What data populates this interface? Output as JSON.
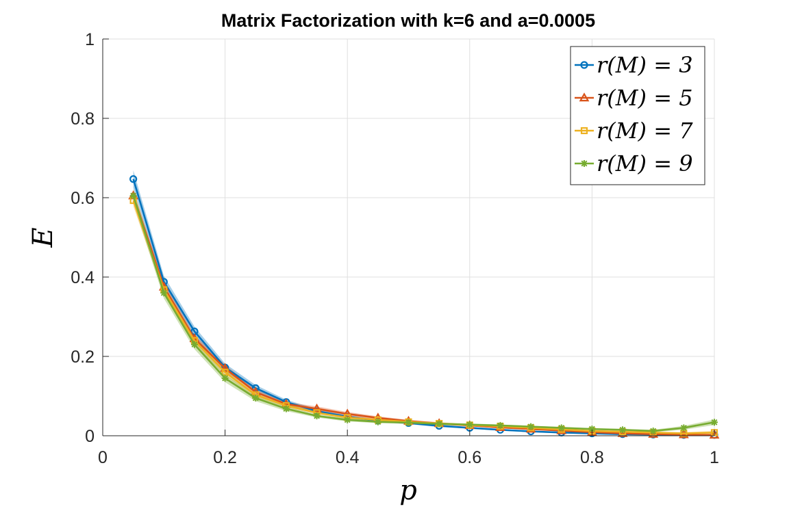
{
  "chart_data": {
    "type": "line",
    "title": "Matrix Factorization with k=6 and a=0.0005",
    "xlabel": "p",
    "ylabel": "E",
    "xlim": [
      0,
      1
    ],
    "ylim": [
      0,
      1
    ],
    "xticks": [
      "0",
      "0.2",
      "0.4",
      "0.6",
      "0.8",
      "1"
    ],
    "yticks": [
      "0",
      "0.2",
      "0.4",
      "0.6",
      "0.8",
      "1"
    ],
    "grid": true,
    "legend_position": "top-right",
    "x": [
      0.05,
      0.1,
      0.15,
      0.2,
      0.25,
      0.3,
      0.35,
      0.4,
      0.45,
      0.5,
      0.55,
      0.6,
      0.65,
      0.7,
      0.75,
      0.8,
      0.85,
      0.9,
      0.95,
      1.0
    ],
    "series": [
      {
        "name": "r(M) = 3",
        "color": "#0072BD",
        "marker": "circle",
        "values": [
          0.647,
          0.388,
          0.263,
          0.172,
          0.12,
          0.085,
          0.062,
          0.048,
          0.038,
          0.032,
          0.025,
          0.02,
          0.015,
          0.011,
          0.008,
          0.006,
          0.004,
          0.003,
          0.002,
          0.002
        ],
        "band": [
          0.022,
          0.015,
          0.012,
          0.01,
          0.008,
          0.006,
          0.005,
          0.004,
          0.003,
          0.003,
          0.003,
          0.002,
          0.002,
          0.002,
          0.002,
          0.002,
          0.002,
          0.002,
          0.002,
          0.002
        ]
      },
      {
        "name": "r(M) = 5",
        "color": "#D95319",
        "marker": "triangle",
        "values": [
          0.605,
          0.375,
          0.245,
          0.17,
          0.11,
          0.08,
          0.068,
          0.055,
          0.045,
          0.037,
          0.031,
          0.026,
          0.021,
          0.017,
          0.013,
          0.009,
          0.006,
          0.004,
          0.003,
          0.002
        ],
        "band": [
          0.015,
          0.012,
          0.01,
          0.009,
          0.007,
          0.005,
          0.006,
          0.005,
          0.004,
          0.003,
          0.003,
          0.002,
          0.002,
          0.002,
          0.002,
          0.002,
          0.002,
          0.002,
          0.002,
          0.002
        ]
      },
      {
        "name": "r(M) = 7",
        "color": "#EDB120",
        "marker": "square",
        "values": [
          0.593,
          0.368,
          0.24,
          0.16,
          0.103,
          0.076,
          0.058,
          0.046,
          0.04,
          0.035,
          0.031,
          0.027,
          0.024,
          0.02,
          0.016,
          0.012,
          0.01,
          0.008,
          0.006,
          0.008
        ],
        "band": [
          0.015,
          0.012,
          0.01,
          0.009,
          0.007,
          0.005,
          0.004,
          0.004,
          0.003,
          0.003,
          0.003,
          0.003,
          0.002,
          0.002,
          0.002,
          0.002,
          0.002,
          0.002,
          0.003,
          0.004
        ]
      },
      {
        "name": "r(M) = 9",
        "color": "#77AC30",
        "marker": "star",
        "values": [
          0.605,
          0.36,
          0.23,
          0.145,
          0.095,
          0.068,
          0.05,
          0.04,
          0.035,
          0.033,
          0.03,
          0.028,
          0.026,
          0.023,
          0.02,
          0.017,
          0.015,
          0.012,
          0.02,
          0.034
        ],
        "band": [
          0.018,
          0.014,
          0.012,
          0.01,
          0.008,
          0.006,
          0.004,
          0.004,
          0.003,
          0.003,
          0.003,
          0.003,
          0.002,
          0.002,
          0.002,
          0.002,
          0.002,
          0.003,
          0.005,
          0.007
        ]
      }
    ]
  }
}
